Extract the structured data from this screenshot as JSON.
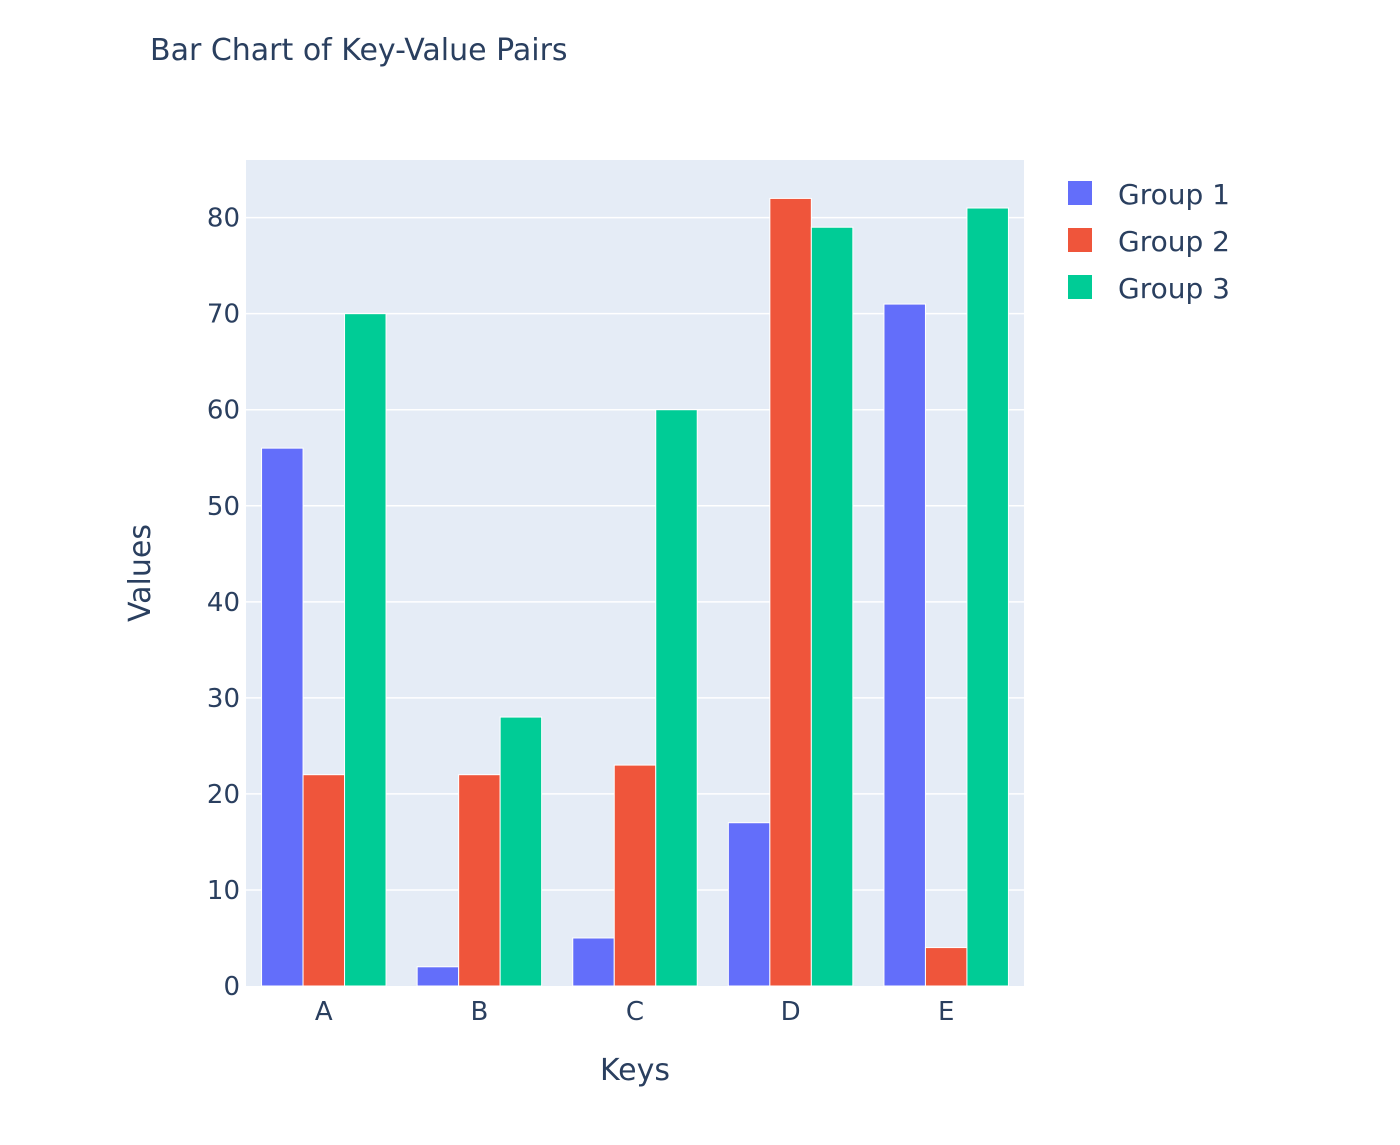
{
  "chart_data": {
    "type": "bar",
    "title": "Bar Chart of Key-Value Pairs",
    "xlabel": "Keys",
    "ylabel": "Values",
    "categories": [
      "A",
      "B",
      "C",
      "D",
      "E"
    ],
    "ylim": [
      0,
      86
    ],
    "yticks": [
      0,
      10,
      20,
      30,
      40,
      50,
      60,
      70,
      80
    ],
    "grid": true,
    "legend_position": "top-right",
    "plot_background": "#e5ecf6",
    "series": [
      {
        "name": "Group 1",
        "color": "#636efa",
        "values": [
          56,
          2,
          5,
          17,
          71
        ]
      },
      {
        "name": "Group 2",
        "color": "#ef553b",
        "values": [
          22,
          22,
          23,
          82,
          4
        ]
      },
      {
        "name": "Group 3",
        "color": "#00cc96",
        "values": [
          70,
          28,
          60,
          79,
          81
        ]
      }
    ]
  }
}
